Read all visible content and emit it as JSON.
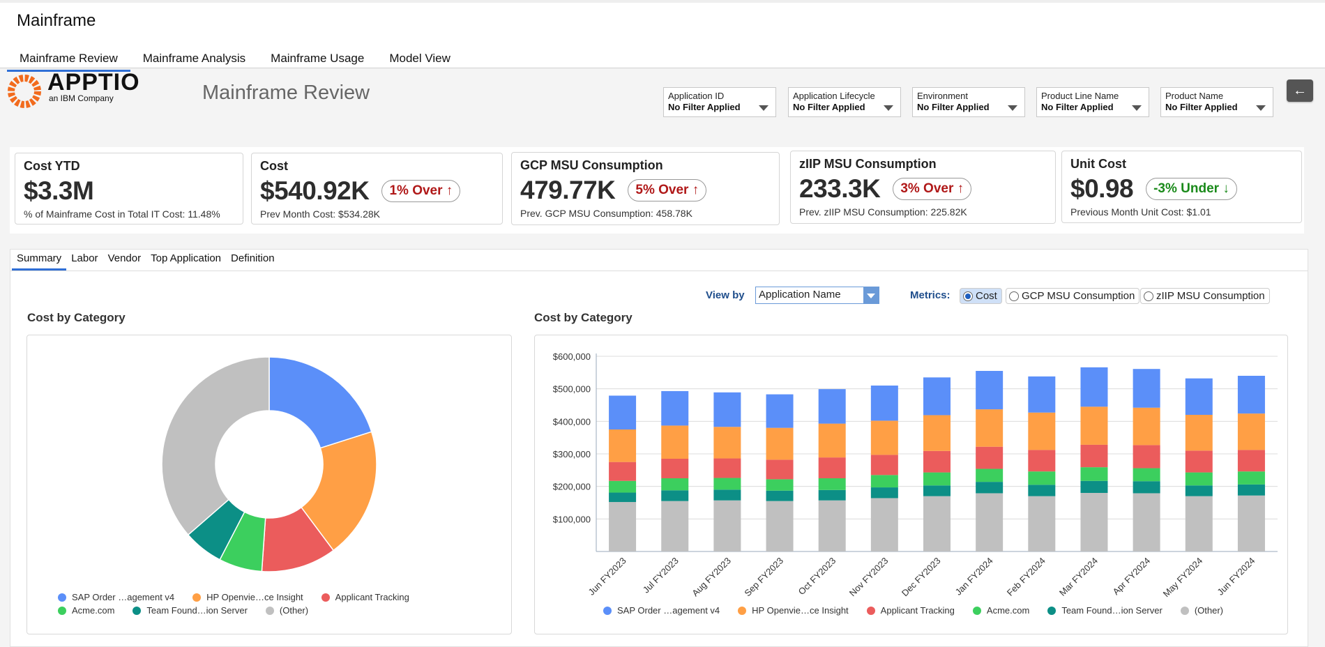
{
  "app": {
    "title": "Mainframe"
  },
  "main_tabs": [
    {
      "label": "Mainframe Review",
      "active": true
    },
    {
      "label": "Mainframe Analysis",
      "active": false
    },
    {
      "label": "Mainframe Usage",
      "active": false
    },
    {
      "label": "Model View",
      "active": false
    }
  ],
  "brand": {
    "name": "APPTIO",
    "tagline": "an IBM Company"
  },
  "page_title": "Mainframe Review",
  "filters": [
    {
      "label": "Application ID",
      "value": "No Filter Applied"
    },
    {
      "label": "Application Lifecycle",
      "value": "No Filter Applied"
    },
    {
      "label": "Environment",
      "value": "No Filter Applied"
    },
    {
      "label": "Product Line Name",
      "value": "No Filter Applied"
    },
    {
      "label": "Product Name",
      "value": "No Filter Applied"
    }
  ],
  "back_icon": "arrow-left-icon",
  "kpis": [
    {
      "title": "Cost YTD",
      "value": "$3.3M",
      "badge": "",
      "sub": "% of Mainframe Cost in Total IT Cost: 11.48%"
    },
    {
      "title": "Cost",
      "value": "$540.92K",
      "badge": "1% Over",
      "direction": "up",
      "sub": "Prev Month Cost: $534.28K"
    },
    {
      "title": "GCP MSU Consumption",
      "value": "479.77K",
      "badge": "5% Over",
      "direction": "up",
      "sub": "Prev. GCP MSU Consumption: 458.78K"
    },
    {
      "title": "zIIP MSU Consumption",
      "value": "233.3K",
      "badge": "3% Over",
      "direction": "up",
      "sub": "Prev. zIIP MSU Consumption: 225.82K"
    },
    {
      "title": "Unit Cost",
      "value": "$0.98",
      "badge": "-3% Under",
      "direction": "down",
      "sub": "Previous Month Unit Cost: $1.01"
    }
  ],
  "colors": {
    "over": "#b01818",
    "under": "#1a8a1a",
    "accent": "#2f6fd6"
  },
  "sub_tabs": [
    {
      "label": "Summary",
      "active": true
    },
    {
      "label": "Labor",
      "active": false
    },
    {
      "label": "Vendor",
      "active": false
    },
    {
      "label": "Top Application",
      "active": false
    },
    {
      "label": "Definition",
      "active": false
    }
  ],
  "view_by": {
    "label": "View by",
    "value": "Application Name"
  },
  "metrics": {
    "label": "Metrics:",
    "options": [
      {
        "label": "Cost",
        "selected": true
      },
      {
        "label": "GCP MSU Consumption",
        "selected": false
      },
      {
        "label": "zIIP MSU Consumption",
        "selected": false
      }
    ]
  },
  "legend": [
    {
      "name": "SAP Order …agement v4",
      "color": "#5b8ff9"
    },
    {
      "name": "HP Openvie…ce Insight",
      "color": "#ff9f45"
    },
    {
      "name": "Applicant Tracking",
      "color": "#eb5c5c"
    },
    {
      "name": "Acme.com",
      "color": "#3ccf5e"
    },
    {
      "name": "Team Found…ion Server",
      "color": "#0c8f86"
    },
    {
      "name": "(Other)",
      "color": "#c0c0c0"
    }
  ],
  "chart_data": [
    {
      "type": "pie",
      "title": "Cost by Category",
      "donut": true,
      "labels": [
        "SAP Order …agement v4",
        "HP Openvie…ce Insight",
        "Applicant Tracking",
        "Acme.com",
        "Team Found…ion Server",
        "(Other)"
      ],
      "values": [
        20.1,
        19.7,
        11.3,
        6.5,
        6.0,
        36.4
      ],
      "colors": [
        "#5b8ff9",
        "#ff9f45",
        "#eb5c5c",
        "#3ccf5e",
        "#0c8f86",
        "#c0c0c0"
      ]
    },
    {
      "type": "bar",
      "stacked": true,
      "title": "Cost by Category",
      "categories": [
        "Jun FY2023",
        "Jul FY2023",
        "Aug FY2023",
        "Sep FY2023",
        "Oct FY2023",
        "Nov FY2023",
        "Dec FY2023",
        "Jan FY2024",
        "Feb FY2024",
        "Mar FY2024",
        "Apr FY2024",
        "May FY2024",
        "Jun FY2024"
      ],
      "ylim": [
        0,
        600000
      ],
      "yticks": [
        "$100,000",
        "$200,000",
        "$300,000",
        "$400,000",
        "$500,000",
        "$600,000"
      ],
      "series": [
        {
          "name": "(Other)",
          "color": "#c0c0c0",
          "values": [
            152000,
            155000,
            157000,
            155000,
            157000,
            164000,
            170000,
            179000,
            170000,
            180000,
            179000,
            170000,
            172000
          ]
        },
        {
          "name": "Team Found…ion Server",
          "color": "#0c8f86",
          "values": [
            29000,
            33000,
            33000,
            32000,
            32000,
            33000,
            33000,
            35000,
            35000,
            37000,
            37000,
            33000,
            34000
          ]
        },
        {
          "name": "Acme.com",
          "color": "#3ccf5e",
          "values": [
            36000,
            37000,
            36000,
            35000,
            36000,
            38000,
            40000,
            40000,
            41000,
            42000,
            40000,
            40000,
            40000
          ]
        },
        {
          "name": "Applicant Tracking",
          "color": "#eb5c5c",
          "values": [
            58000,
            60000,
            60000,
            60000,
            64000,
            62000,
            66000,
            68000,
            66000,
            69000,
            71000,
            67000,
            66000
          ]
        },
        {
          "name": "HP Openvie…ce Insight",
          "color": "#ff9f45",
          "values": [
            100000,
            102000,
            97000,
            98000,
            104000,
            105000,
            110000,
            115000,
            115000,
            117000,
            115000,
            110000,
            112000
          ]
        },
        {
          "name": "SAP Order …agement v4",
          "color": "#5b8ff9",
          "values": [
            104000,
            106000,
            106000,
            103000,
            106000,
            108000,
            116000,
            118000,
            111000,
            121000,
            119000,
            112000,
            116000
          ]
        }
      ]
    }
  ]
}
